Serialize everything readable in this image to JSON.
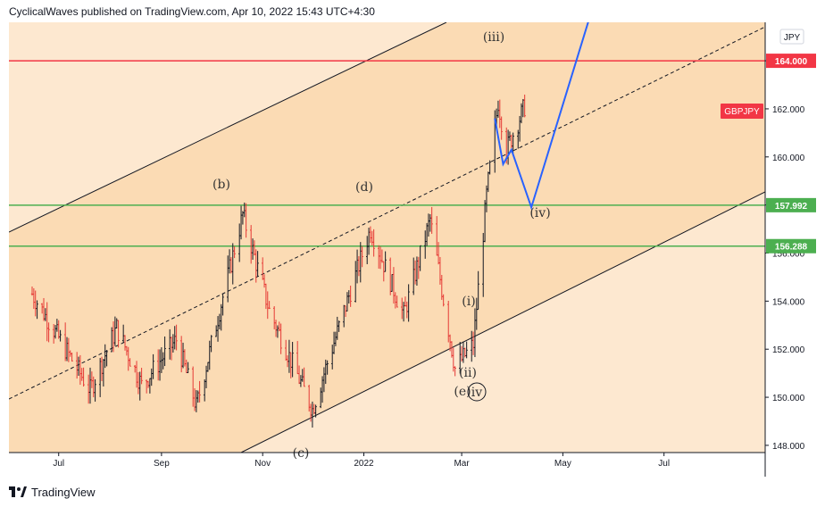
{
  "header": {
    "publisher_line": "CyclicalWaves published on TradingView.com, Apr 10, 2022 15:43 UTC+4:30"
  },
  "footer": {
    "brand": "TradingView",
    "logo_icon": "tradingview-logo-icon"
  },
  "chart_data": {
    "type": "candlestick",
    "symbol": "GBPJPY",
    "currency": "JPY",
    "x_labels": [
      "Jul",
      "Sep",
      "Nov",
      "2022",
      "Mar",
      "May",
      "Jul"
    ],
    "y_ticks": [
      "148.000",
      "150.000",
      "152.000",
      "154.000",
      "156.000",
      "158.000",
      "160.000",
      "162.000",
      "164.000"
    ],
    "ylim": [
      147.7,
      165.6
    ],
    "horizontal_levels": [
      {
        "label": "164.000",
        "value": 164.0,
        "color": "#f23645"
      },
      {
        "label": "157.992",
        "value": 157.992,
        "color": "#4caf50"
      },
      {
        "label": "156.288",
        "value": 156.288,
        "color": "#4caf50"
      }
    ],
    "wave_labels": [
      "(b)",
      "(d)",
      "(iii)",
      "(i)",
      "(ii)",
      "(e)",
      "iv",
      "(iv)",
      "(c)"
    ],
    "projection": [
      {
        "date": "2022-03-21",
        "value": 161.6
      },
      {
        "date": "2022-03-26",
        "value": 159.7
      },
      {
        "date": "2022-03-31",
        "value": 160.3
      },
      {
        "date": "2022-04-12",
        "value": 157.9
      },
      {
        "date": "2022-05-18",
        "value": 166.0
      }
    ],
    "candles_summary": {
      "start": "2021-06-15",
      "end": "2022-04-08",
      "path": [
        {
          "date": "2021-06-15",
          "close": 154.3
        },
        {
          "date": "2021-07-20",
          "close": 150.3
        },
        {
          "date": "2021-08-05",
          "close": 152.9
        },
        {
          "date": "2021-08-20",
          "close": 150.5
        },
        {
          "date": "2021-09-10",
          "close": 152.4
        },
        {
          "date": "2021-09-22",
          "close": 149.6
        },
        {
          "date": "2021-10-20",
          "close": 157.6
        },
        {
          "date": "2021-11-05",
          "close": 153.6
        },
        {
          "date": "2021-12-01",
          "close": 149.5
        },
        {
          "date": "2022-01-05",
          "close": 157.0
        },
        {
          "date": "2022-01-25",
          "close": 153.4
        },
        {
          "date": "2022-02-10",
          "close": 157.4
        },
        {
          "date": "2022-02-25",
          "close": 151.2
        },
        {
          "date": "2022-03-08",
          "close": 152.2
        },
        {
          "date": "2022-03-16",
          "close": 158.4
        },
        {
          "date": "2022-03-23",
          "close": 162.3
        },
        {
          "date": "2022-03-28",
          "close": 160.3
        },
        {
          "date": "2022-04-08",
          "close": 162.1
        }
      ]
    }
  },
  "colors": {
    "channel_fill": "#fbdbb4",
    "background": "#fde8d0",
    "red_line": "#f23645",
    "green_line": "#4caf50",
    "projection": "#2962ff",
    "candle_down": "#e53935",
    "candle_up": "#131722"
  }
}
